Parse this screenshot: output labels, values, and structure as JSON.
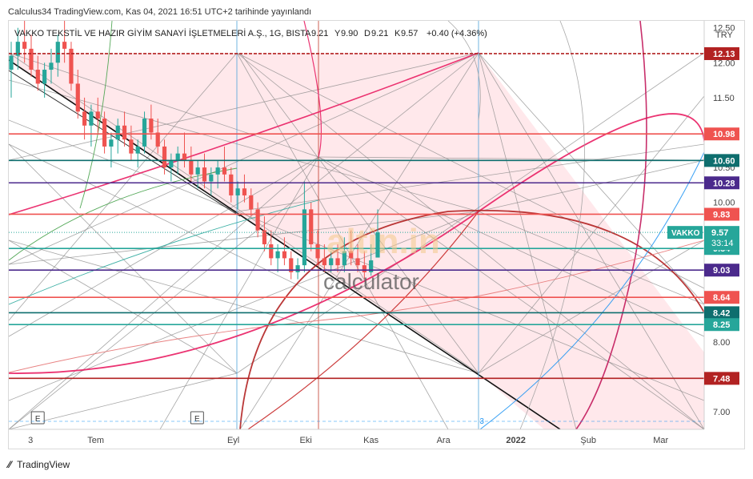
{
  "publish_line": "Calculus34 TradingView.com, Kas 04, 2021 16:51 UTC+2 tarihinde yayınlandı",
  "footer_brand": "TradingView",
  "watermark": {
    "main": "altin.in",
    "sub": "calculator"
  },
  "colors": {
    "red": "#ef5350",
    "darkred": "#b22222",
    "teal": "#0e6e6e",
    "tealLight": "#26a69a",
    "purple": "#4b2a8c",
    "crimson": "#e91e63",
    "blue": "#2196f3",
    "fan": "#ffcdd2",
    "candleUp": "#26a69a",
    "candleDown": "#ef5350"
  },
  "chart_data": {
    "type": "candlestick",
    "title": "VAKKO TEKSTİL VE HAZIR GİYİM SANAYİ İŞLETMELERİ A.Ş., 1G, BIST",
    "ohlc_header": {
      "A": "9.21",
      "Y": "9.90",
      "D": "9.21",
      "K": "9.57",
      "change": "+0.40 (+4.36%)"
    },
    "currency": "TRY",
    "ylim": [
      6.75,
      12.6
    ],
    "y_ticks": [
      "12.50",
      "12.00",
      "11.50",
      "10.50",
      "10.00",
      "8.00",
      "7.00"
    ],
    "x_ticks": [
      "3",
      "Tem",
      "Eyl",
      "Eki",
      "Kas",
      "Ara",
      "2022",
      "Şub",
      "Mar"
    ],
    "x_tick_positions": [
      3,
      12,
      31,
      41,
      50,
      60,
      70,
      80,
      90
    ],
    "x_range": [
      0,
      96
    ],
    "horizontal_levels": [
      {
        "value": 12.13,
        "label": "12.13",
        "color": "darkred",
        "dashed": true
      },
      {
        "value": 10.98,
        "label": "10.98",
        "color": "red"
      },
      {
        "value": 10.6,
        "label": "10.60",
        "color": "teal"
      },
      {
        "value": 10.28,
        "label": "10.28",
        "color": "purple"
      },
      {
        "value": 9.83,
        "label": "9.83",
        "color": "red"
      },
      {
        "value": 9.34,
        "label": "9.34",
        "color": "tealLight"
      },
      {
        "value": 9.03,
        "label": "9.03",
        "color": "purple"
      },
      {
        "value": 8.64,
        "label": "8.64",
        "color": "red"
      },
      {
        "value": 8.42,
        "label": "8.42",
        "color": "teal"
      },
      {
        "value": 8.25,
        "label": "8.25",
        "color": "tealLight"
      },
      {
        "value": 7.48,
        "label": "7.48",
        "color": "darkred"
      }
    ],
    "last_price": {
      "value": 9.57,
      "label": "9.57",
      "countdown": "33:14",
      "symbol": "VAKKO"
    },
    "events": [
      {
        "x": 4,
        "label": "E"
      },
      {
        "x": 26,
        "label": "E"
      }
    ],
    "marker_3": {
      "x": 65,
      "label": "3"
    },
    "candles": [
      [
        11.9,
        12.3,
        11.5,
        12.1
      ],
      [
        12.1,
        12.5,
        11.9,
        12.3
      ],
      [
        12.3,
        12.6,
        12.0,
        12.2
      ],
      [
        12.2,
        12.4,
        11.8,
        11.9
      ],
      [
        11.9,
        12.1,
        11.6,
        11.7
      ],
      [
        11.7,
        12.0,
        11.5,
        11.9
      ],
      [
        11.9,
        12.2,
        11.7,
        12.0
      ],
      [
        12.0,
        12.4,
        11.8,
        12.3
      ],
      [
        12.3,
        12.6,
        12.0,
        12.2
      ],
      [
        12.2,
        12.3,
        11.6,
        11.7
      ],
      [
        11.7,
        11.9,
        11.2,
        11.3
      ],
      [
        11.3,
        11.5,
        10.9,
        11.1
      ],
      [
        11.1,
        11.4,
        10.8,
        11.3
      ],
      [
        11.3,
        11.5,
        11.0,
        11.2
      ],
      [
        11.2,
        11.3,
        10.7,
        10.8
      ],
      [
        10.8,
        11.0,
        10.5,
        10.9
      ],
      [
        10.9,
        11.2,
        10.7,
        11.1
      ],
      [
        11.1,
        11.3,
        10.8,
        10.9
      ],
      [
        10.9,
        11.1,
        10.6,
        10.7
      ],
      [
        10.7,
        10.9,
        10.5,
        10.8
      ],
      [
        10.8,
        11.3,
        10.7,
        11.2
      ],
      [
        11.2,
        11.4,
        10.9,
        11.0
      ],
      [
        11.0,
        11.2,
        10.7,
        10.8
      ],
      [
        10.8,
        10.9,
        10.4,
        10.5
      ],
      [
        10.5,
        10.7,
        10.3,
        10.6
      ],
      [
        10.6,
        10.8,
        10.4,
        10.7
      ],
      [
        10.7,
        11.0,
        10.5,
        10.6
      ],
      [
        10.6,
        10.8,
        10.3,
        10.4
      ],
      [
        10.4,
        10.6,
        10.2,
        10.5
      ],
      [
        10.5,
        10.7,
        10.2,
        10.3
      ],
      [
        10.3,
        10.5,
        10.1,
        10.4
      ],
      [
        10.4,
        10.6,
        10.2,
        10.5
      ],
      [
        10.5,
        10.8,
        10.3,
        10.4
      ],
      [
        10.4,
        10.5,
        10.0,
        10.1
      ],
      [
        10.1,
        10.3,
        9.9,
        10.2
      ],
      [
        10.2,
        10.4,
        10.0,
        10.1
      ],
      [
        10.1,
        10.2,
        9.8,
        9.9
      ],
      [
        9.9,
        10.0,
        9.5,
        9.6
      ],
      [
        9.6,
        9.8,
        9.3,
        9.4
      ],
      [
        9.4,
        9.6,
        9.1,
        9.2
      ],
      [
        9.2,
        9.4,
        9.0,
        9.3
      ],
      [
        9.3,
        9.5,
        9.1,
        9.2
      ],
      [
        9.2,
        9.3,
        8.9,
        9.0
      ],
      [
        9.0,
        9.2,
        8.9,
        9.1
      ],
      [
        9.1,
        10.3,
        9.0,
        9.9
      ],
      [
        9.9,
        10.0,
        9.3,
        9.4
      ],
      [
        9.4,
        9.6,
        9.1,
        9.2
      ],
      [
        9.2,
        9.4,
        9.0,
        9.1
      ],
      [
        9.1,
        9.3,
        9.0,
        9.2
      ],
      [
        9.2,
        9.4,
        9.0,
        9.1
      ],
      [
        9.1,
        9.5,
        9.0,
        9.3
      ],
      [
        9.3,
        9.6,
        9.1,
        9.2
      ],
      [
        9.2,
        9.4,
        9.0,
        9.1
      ],
      [
        9.1,
        9.3,
        8.9,
        9.0
      ],
      [
        9.0,
        9.4,
        8.95,
        9.17
      ],
      [
        9.21,
        9.9,
        9.21,
        9.57
      ]
    ]
  }
}
